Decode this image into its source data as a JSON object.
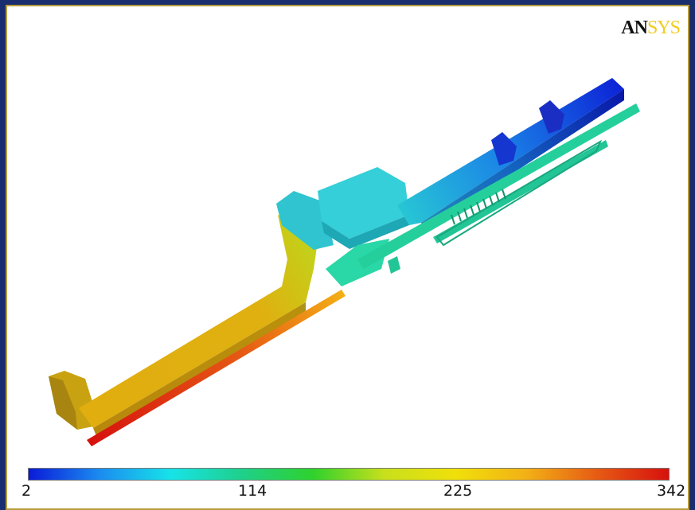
{
  "logo": {
    "part1": "AN",
    "part2": "SYS"
  },
  "legend": {
    "ticks": [
      "2",
      "114",
      "225",
      "342"
    ]
  },
  "colors": {
    "frame": "#1a2d6e",
    "border": "#b79a3a",
    "scale": [
      "#0a1bd8",
      "#1b8cf0",
      "#17e3e8",
      "#1fd08a",
      "#2fd12c",
      "#c8e01c",
      "#f0e00a",
      "#f3b016",
      "#e65a14",
      "#d6110e"
    ]
  }
}
